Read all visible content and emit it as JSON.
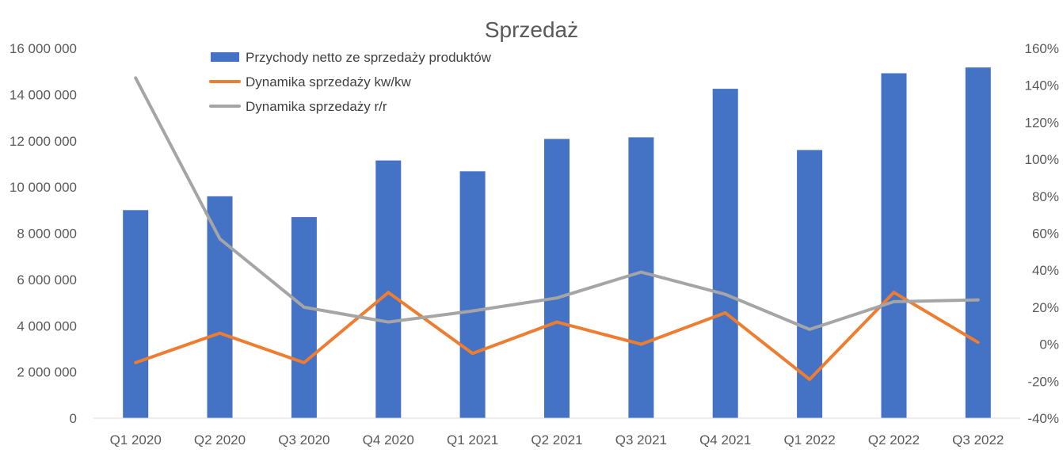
{
  "chart_data": {
    "type": "bar",
    "title": "Sprzedaż",
    "categories": [
      "Q1 2020",
      "Q2 2020",
      "Q3 2020",
      "Q4 2020",
      "Q1 2021",
      "Q2 2021",
      "Q3 2021",
      "Q4 2021",
      "Q1 2022",
      "Q2 2022",
      "Q3 2022"
    ],
    "series": [
      {
        "name": "Przychody netto ze sprzedaży produktów",
        "type": "bar",
        "axis": "left",
        "color": "#4472C4",
        "values": [
          9000000,
          9600000,
          8700000,
          11150000,
          10680000,
          12080000,
          12150000,
          14250000,
          11600000,
          14920000,
          15170000
        ]
      },
      {
        "name": "Dynamika sprzedaży kw/kw",
        "type": "line",
        "axis": "right",
        "color": "#ED7D31",
        "values": [
          -10,
          6,
          -10,
          28,
          -5,
          12,
          0,
          17,
          -19,
          28,
          1
        ]
      },
      {
        "name": "Dynamika sprzedaży r/r",
        "type": "line",
        "axis": "right",
        "color": "#A5A5A5",
        "values": [
          144,
          57,
          20,
          12,
          18,
          25,
          39,
          27,
          8,
          23,
          24
        ]
      }
    ],
    "y_left": {
      "ylim": [
        0,
        16000000
      ],
      "ticks": [
        0,
        2000000,
        4000000,
        6000000,
        8000000,
        10000000,
        12000000,
        14000000,
        16000000
      ],
      "tick_labels": [
        "0",
        "2 000 000",
        "4 000 000",
        "6 000 000",
        "8 000 000",
        "10 000 000",
        "12 000 000",
        "14 000 000",
        "16 000 000"
      ]
    },
    "y_right": {
      "ylim": [
        -40,
        160
      ],
      "ticks": [
        -40,
        -20,
        0,
        20,
        40,
        60,
        80,
        100,
        120,
        140,
        160
      ],
      "tick_labels": [
        "-40%",
        "-20%",
        "0%",
        "20%",
        "40%",
        "60%",
        "80%",
        "100%",
        "120%",
        "140%",
        "160%"
      ]
    },
    "grid": false,
    "legend_position": "top-center"
  }
}
